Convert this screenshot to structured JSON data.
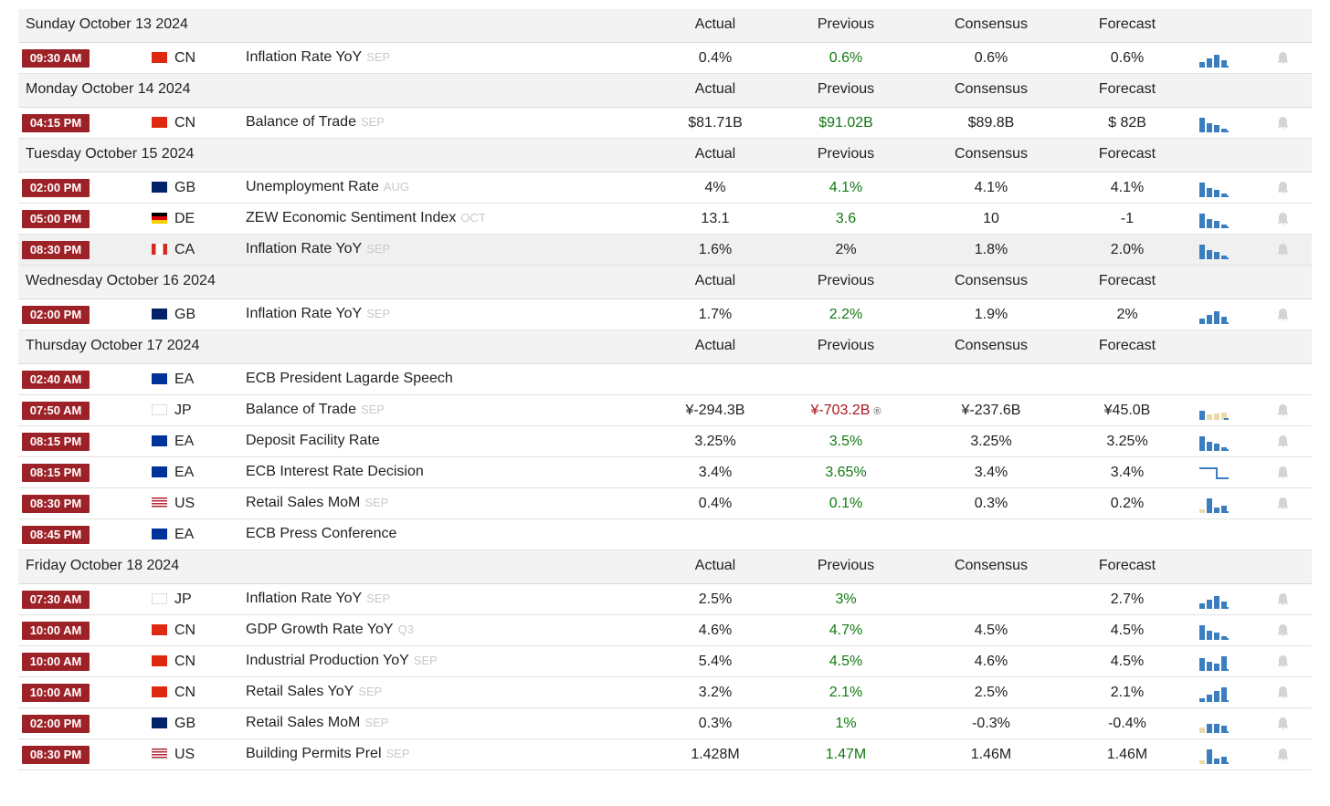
{
  "columns": {
    "actual": "Actual",
    "previous": "Previous",
    "consensus": "Consensus",
    "forecast": "Forecast"
  },
  "colors": {
    "time_badge": "#9d2228",
    "previous_green": "#117a11",
    "previous_red": "#a8171c",
    "spark_blue": "#3a7ebf",
    "spark_tan": "#f0d9a8"
  },
  "days": [
    {
      "date": "Sunday October 13 2024",
      "events": [
        {
          "time": "09:30 AM",
          "flag": "cn",
          "country": "CN",
          "event": "Inflation Rate YoY",
          "ref": "SEP",
          "actual": "0.4%",
          "previous": "0.6%",
          "previous_color": "green",
          "consensus": "0.6%",
          "forecast": "0.6%",
          "spark": "bars-rising",
          "bell": "bell-icon"
        }
      ]
    },
    {
      "date": "Monday October 14 2024",
      "events": [
        {
          "time": "04:15 PM",
          "flag": "cn",
          "country": "CN",
          "event": "Balance of Trade",
          "ref": "SEP",
          "actual": "$81.71B",
          "previous": "$91.02B",
          "previous_color": "green",
          "consensus": "$89.8B",
          "forecast": "$ 82B",
          "spark": "bars-down",
          "bell": "bell-icon"
        }
      ]
    },
    {
      "date": "Tuesday October 15 2024",
      "events": [
        {
          "time": "02:00 PM",
          "flag": "gb",
          "country": "GB",
          "event": "Unemployment Rate",
          "ref": "AUG",
          "actual": "4%",
          "previous": "4.1%",
          "previous_color": "green",
          "consensus": "4.1%",
          "forecast": "4.1%",
          "spark": "bars-down",
          "bell": "bell-icon"
        },
        {
          "time": "05:00 PM",
          "flag": "de",
          "country": "DE",
          "event": "ZEW Economic Sentiment Index",
          "ref": "OCT",
          "actual": "13.1",
          "previous": "3.6",
          "previous_color": "green",
          "consensus": "10",
          "forecast": "-1",
          "spark": "bars-down",
          "bell": "bell-icon"
        },
        {
          "time": "08:30 PM",
          "flag": "ca",
          "country": "CA",
          "event": "Inflation Rate YoY",
          "ref": "SEP",
          "actual": "1.6%",
          "previous": "2%",
          "previous_color": "plain",
          "consensus": "1.8%",
          "forecast": "2.0%",
          "spark": "bars-down",
          "bell": "bell-icon",
          "highlight": true
        }
      ]
    },
    {
      "date": "Wednesday October 16 2024",
      "events": [
        {
          "time": "02:00 PM",
          "flag": "gb",
          "country": "GB",
          "event": "Inflation Rate YoY",
          "ref": "SEP",
          "actual": "1.7%",
          "previous": "2.2%",
          "previous_color": "green",
          "consensus": "1.9%",
          "forecast": "2%",
          "spark": "bars-rising",
          "bell": "bell-icon"
        }
      ]
    },
    {
      "date": "Thursday October 17 2024",
      "events": [
        {
          "time": "02:40 AM",
          "flag": "ea",
          "country": "EA",
          "event": "ECB President Lagarde Speech",
          "ref": "",
          "actual": "",
          "previous": "",
          "previous_color": "plain",
          "consensus": "",
          "forecast": "",
          "spark": "",
          "bell": ""
        },
        {
          "time": "07:50 AM",
          "flag": "jp",
          "country": "JP",
          "event": "Balance of Trade",
          "ref": "SEP",
          "actual": "¥-294.3B",
          "previous": "¥-703.2B",
          "previous_color": "red",
          "previous_icon": "®",
          "consensus": "¥-237.6B",
          "forecast": "¥45.0B",
          "spark": "bars-negative",
          "bell": "bell-icon"
        },
        {
          "time": "08:15 PM",
          "flag": "ea",
          "country": "EA",
          "event": "Deposit Facility Rate",
          "ref": "",
          "actual": "3.25%",
          "previous": "3.5%",
          "previous_color": "green",
          "consensus": "3.25%",
          "forecast": "3.25%",
          "spark": "bars-down",
          "bell": "bell-icon"
        },
        {
          "time": "08:15 PM",
          "flag": "ea",
          "country": "EA",
          "event": "ECB Interest Rate Decision",
          "ref": "",
          "actual": "3.4%",
          "previous": "3.65%",
          "previous_color": "green",
          "consensus": "3.4%",
          "forecast": "3.4%",
          "spark": "step-line",
          "bell": "bell-icon"
        },
        {
          "time": "08:30 PM",
          "flag": "us",
          "country": "US",
          "event": "Retail Sales MoM",
          "ref": "SEP",
          "actual": "0.4%",
          "previous": "0.1%",
          "previous_color": "green",
          "consensus": "0.3%",
          "forecast": "0.2%",
          "spark": "bars-mixed",
          "bell": "bell-icon"
        },
        {
          "time": "08:45 PM",
          "flag": "ea",
          "country": "EA",
          "event": "ECB Press Conference",
          "ref": "",
          "actual": "",
          "previous": "",
          "previous_color": "plain",
          "consensus": "",
          "forecast": "",
          "spark": "",
          "bell": ""
        }
      ]
    },
    {
      "date": "Friday October 18 2024",
      "events": [
        {
          "time": "07:30 AM",
          "flag": "jp",
          "country": "JP",
          "event": "Inflation Rate YoY",
          "ref": "SEP",
          "actual": "2.5%",
          "previous": "3%",
          "previous_color": "green",
          "consensus": "",
          "forecast": "2.7%",
          "spark": "bars-rising",
          "bell": "bell-icon"
        },
        {
          "time": "10:00 AM",
          "flag": "cn",
          "country": "CN",
          "event": "GDP Growth Rate YoY",
          "ref": "Q3",
          "actual": "4.6%",
          "previous": "4.7%",
          "previous_color": "green",
          "consensus": "4.5%",
          "forecast": "4.5%",
          "spark": "bars-down",
          "bell": "bell-icon"
        },
        {
          "time": "10:00 AM",
          "flag": "cn",
          "country": "CN",
          "event": "Industrial Production YoY",
          "ref": "SEP",
          "actual": "5.4%",
          "previous": "4.5%",
          "previous_color": "green",
          "consensus": "4.6%",
          "forecast": "4.5%",
          "spark": "bars-valley",
          "bell": "bell-icon"
        },
        {
          "time": "10:00 AM",
          "flag": "cn",
          "country": "CN",
          "event": "Retail Sales YoY",
          "ref": "SEP",
          "actual": "3.2%",
          "previous": "2.1%",
          "previous_color": "green",
          "consensus": "2.5%",
          "forecast": "2.1%",
          "spark": "bars-up",
          "bell": "bell-icon"
        },
        {
          "time": "02:00 PM",
          "flag": "gb",
          "country": "GB",
          "event": "Retail Sales MoM",
          "ref": "SEP",
          "actual": "0.3%",
          "previous": "1%",
          "previous_color": "green",
          "consensus": "-0.3%",
          "forecast": "-0.4%",
          "spark": "bars-small",
          "bell": "bell-icon"
        },
        {
          "time": "08:30 PM",
          "flag": "us",
          "country": "US",
          "event": "Building Permits Prel",
          "ref": "SEP",
          "actual": "1.428M",
          "previous": "1.47M",
          "previous_color": "green",
          "consensus": "1.46M",
          "forecast": "1.46M",
          "spark": "bars-mixed",
          "bell": "bell-icon"
        }
      ]
    }
  ]
}
